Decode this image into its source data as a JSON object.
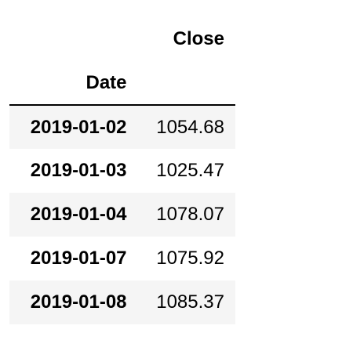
{
  "table": {
    "columns": [
      "Close"
    ],
    "index_name": "Date",
    "rows": [
      {
        "date": "2019-01-02",
        "close": "1054.68"
      },
      {
        "date": "2019-01-03",
        "close": "1025.47"
      },
      {
        "date": "2019-01-04",
        "close": "1078.07"
      },
      {
        "date": "2019-01-07",
        "close": "1075.92"
      },
      {
        "date": "2019-01-08",
        "close": "1085.37"
      }
    ]
  },
  "colors": {
    "striped_row": "#f5f5f5",
    "header_rule": "#000000"
  }
}
